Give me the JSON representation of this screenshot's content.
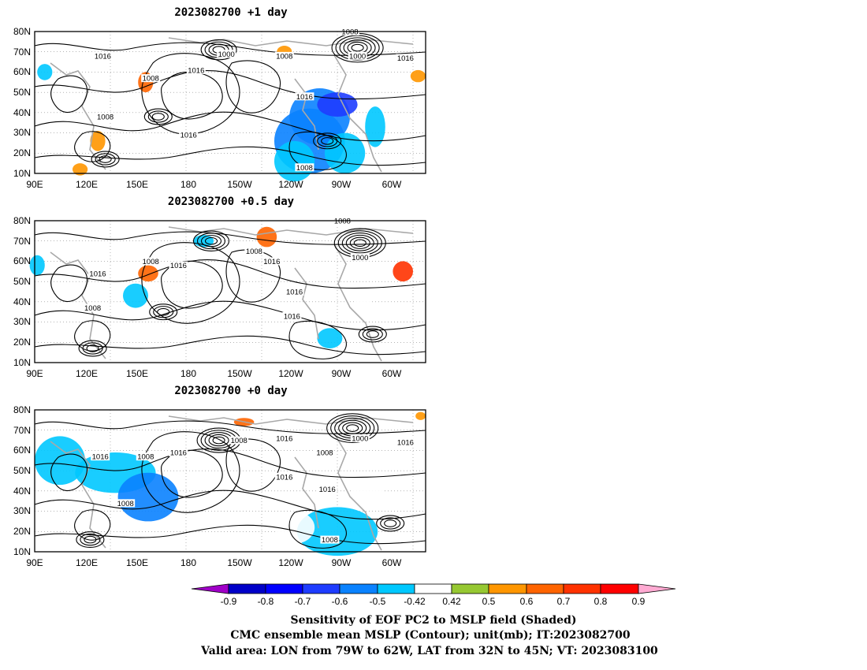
{
  "panels": [
    {
      "title": "2023082700  +1 day",
      "contour_labels": [
        {
          "text": "1008",
          "lon": 215,
          "lat": 80
        },
        {
          "text": "1000",
          "lon": 166,
          "lat": 69
        },
        {
          "text": "1008",
          "lon": 189,
          "lat": 68
        },
        {
          "text": "1000",
          "lon": 218,
          "lat": 68
        },
        {
          "text": "1016",
          "lon": 237,
          "lat": 67
        },
        {
          "text": "1016",
          "lon": 117,
          "lat": 68
        },
        {
          "text": "1016",
          "lon": 154,
          "lat": 61
        },
        {
          "text": "1008",
          "lon": 136,
          "lat": 57
        },
        {
          "text": "1016",
          "lon": 197,
          "lat": 48
        },
        {
          "text": "1008",
          "lon": 118,
          "lat": 38
        },
        {
          "text": "1016",
          "lon": 151,
          "lat": 29
        },
        {
          "text": "1008",
          "lon": 197,
          "lat": 13
        }
      ],
      "highs_lows": [
        {
          "lon": 218,
          "lat": 72,
          "n": 6
        },
        {
          "lon": 163,
          "lat": 71,
          "n": 4
        },
        {
          "lon": 139,
          "lat": 38,
          "n": 3
        },
        {
          "lon": 118,
          "lat": 17,
          "n": 3
        },
        {
          "lon": 206,
          "lat": 26,
          "n": 3
        }
      ],
      "shading": [
        {
          "lon": 203,
          "lat": 38,
          "w": 12,
          "h": 14,
          "v": -0.6
        },
        {
          "lon": 199,
          "lat": 26,
          "w": 14,
          "h": 16,
          "v": -0.55
        },
        {
          "lon": 210,
          "lat": 44,
          "w": 8,
          "h": 6,
          "v": -0.7
        },
        {
          "lon": 213,
          "lat": 20,
          "w": 8,
          "h": 10,
          "v": -0.5
        },
        {
          "lon": 193,
          "lat": 16,
          "w": 8,
          "h": 10,
          "v": -0.45
        },
        {
          "lon": 225,
          "lat": 33,
          "w": 4,
          "h": 10,
          "v": -0.5
        },
        {
          "lon": 134,
          "lat": 55,
          "w": 3,
          "h": 5,
          "v": 0.6
        },
        {
          "lon": 115,
          "lat": 26,
          "w": 3,
          "h": 5,
          "v": 0.5
        },
        {
          "lon": 189,
          "lat": 70,
          "w": 3,
          "h": 3,
          "v": 0.5
        },
        {
          "lon": 242,
          "lat": 58,
          "w": 3,
          "h": 3,
          "v": 0.5
        },
        {
          "lon": 94,
          "lat": 60,
          "w": 3,
          "h": 4,
          "v": -0.5
        },
        {
          "lon": 108,
          "lat": 12,
          "w": 3,
          "h": 3,
          "v": 0.5
        }
      ]
    },
    {
      "title": "2023082700  +0.5 day",
      "contour_labels": [
        {
          "text": "1008",
          "lon": 212,
          "lat": 80
        },
        {
          "text": "1008",
          "lon": 177,
          "lat": 65
        },
        {
          "text": "1000",
          "lon": 219,
          "lat": 62
        },
        {
          "text": "1016",
          "lon": 184,
          "lat": 60
        },
        {
          "text": "1008",
          "lon": 136,
          "lat": 60
        },
        {
          "text": "1016",
          "lon": 147,
          "lat": 58
        },
        {
          "text": "1016",
          "lon": 115,
          "lat": 54
        },
        {
          "text": "1016",
          "lon": 193,
          "lat": 45
        },
        {
          "text": "1008",
          "lon": 113,
          "lat": 37
        },
        {
          "text": "1016",
          "lon": 192,
          "lat": 33
        }
      ],
      "highs_lows": [
        {
          "lon": 219,
          "lat": 69,
          "n": 6
        },
        {
          "lon": 160,
          "lat": 70,
          "n": 4
        },
        {
          "lon": 141,
          "lat": 35,
          "n": 3
        },
        {
          "lon": 113,
          "lat": 17,
          "n": 3
        },
        {
          "lon": 224,
          "lat": 24,
          "n": 3
        }
      ],
      "shading": [
        {
          "lon": 236,
          "lat": 55,
          "w": 4,
          "h": 5,
          "v": 0.7
        },
        {
          "lon": 135,
          "lat": 54,
          "w": 4,
          "h": 4,
          "v": 0.6
        },
        {
          "lon": 182,
          "lat": 72,
          "w": 4,
          "h": 5,
          "v": 0.6
        },
        {
          "lon": 157,
          "lat": 70,
          "w": 4,
          "h": 3,
          "v": -0.5
        },
        {
          "lon": 130,
          "lat": 43,
          "w": 5,
          "h": 6,
          "v": -0.5
        },
        {
          "lon": 91,
          "lat": 58,
          "w": 3,
          "h": 5,
          "v": -0.5
        },
        {
          "lon": 220,
          "lat": 38,
          "w": 4,
          "h": 4,
          "v": -0.42
        },
        {
          "lon": 207,
          "lat": 22,
          "w": 5,
          "h": 5,
          "v": -0.5
        }
      ]
    },
    {
      "title": "2023082700  +0 day",
      "contour_labels": [
        {
          "text": "1008",
          "lon": 171,
          "lat": 65
        },
        {
          "text": "1016",
          "lon": 189,
          "lat": 66
        },
        {
          "text": "1000",
          "lon": 219,
          "lat": 66
        },
        {
          "text": "1016",
          "lon": 237,
          "lat": 64
        },
        {
          "text": "1016",
          "lon": 147,
          "lat": 59
        },
        {
          "text": "1008",
          "lon": 205,
          "lat": 59
        },
        {
          "text": "1016",
          "lon": 116,
          "lat": 57
        },
        {
          "text": "1008",
          "lon": 134,
          "lat": 57
        },
        {
          "text": "1016",
          "lon": 189,
          "lat": 47
        },
        {
          "text": "1016",
          "lon": 206,
          "lat": 41
        },
        {
          "text": "1008",
          "lon": 126,
          "lat": 34
        },
        {
          "text": "1008",
          "lon": 207,
          "lat": 16
        }
      ],
      "highs_lows": [
        {
          "lon": 216,
          "lat": 71,
          "n": 6
        },
        {
          "lon": 163,
          "lat": 65,
          "n": 5
        },
        {
          "lon": 231,
          "lat": 24,
          "n": 3
        },
        {
          "lon": 112,
          "lat": 16,
          "n": 3
        }
      ],
      "shading": [
        {
          "lon": 122,
          "lat": 49,
          "w": 16,
          "h": 10,
          "v": -0.5
        },
        {
          "lon": 135,
          "lat": 37,
          "w": 12,
          "h": 12,
          "v": -0.55
        },
        {
          "lon": 210,
          "lat": 20,
          "w": 16,
          "h": 12,
          "v": -0.5
        },
        {
          "lon": 100,
          "lat": 55,
          "w": 10,
          "h": 12,
          "v": -0.45
        },
        {
          "lon": 193,
          "lat": 22,
          "w": 8,
          "h": 8,
          "v": -0.42
        },
        {
          "lon": 222,
          "lat": 40,
          "w": 6,
          "h": 6,
          "v": -0.42
        },
        {
          "lon": 173,
          "lat": 74,
          "w": 4,
          "h": 2,
          "v": 0.6
        },
        {
          "lon": 243,
          "lat": 77,
          "w": 2,
          "h": 2,
          "v": 0.5
        }
      ]
    }
  ],
  "map": {
    "lon_ticks": [
      "90E",
      "120E",
      "150E",
      "180",
      "150W",
      "120W",
      "90W",
      "60W"
    ],
    "lat_ticks": [
      "80N",
      "70N",
      "60N",
      "50N",
      "40N",
      "30N",
      "20N",
      "10N"
    ],
    "lon_range": [
      90,
      245
    ],
    "lat_range": [
      10,
      80
    ]
  },
  "colorbar": {
    "labels": [
      "-0.9",
      "-0.8",
      "-0.7",
      "-0.6",
      "-0.5",
      "-0.42",
      "0.42",
      "0.5",
      "0.6",
      "0.7",
      "0.8",
      "0.9"
    ],
    "colors": [
      "#a000c8",
      "#0000c8",
      "#0000ff",
      "#1e3cff",
      "#0a82ff",
      "#00c8ff",
      "#ffffff",
      "#96c832",
      "#ff9600",
      "#ff6400",
      "#ff3200",
      "#ff0000",
      "#ffaad2"
    ]
  },
  "caption": {
    "line1": "Sensitivity of EOF PC2 to MSLP field (Shaded)",
    "line2": "CMC ensemble mean MSLP (Contour); unit(mb); IT:2023082700",
    "line3": "Valid area: LON from 79W to 62W, LAT from 32N to 45N; VT: 2023083100"
  }
}
